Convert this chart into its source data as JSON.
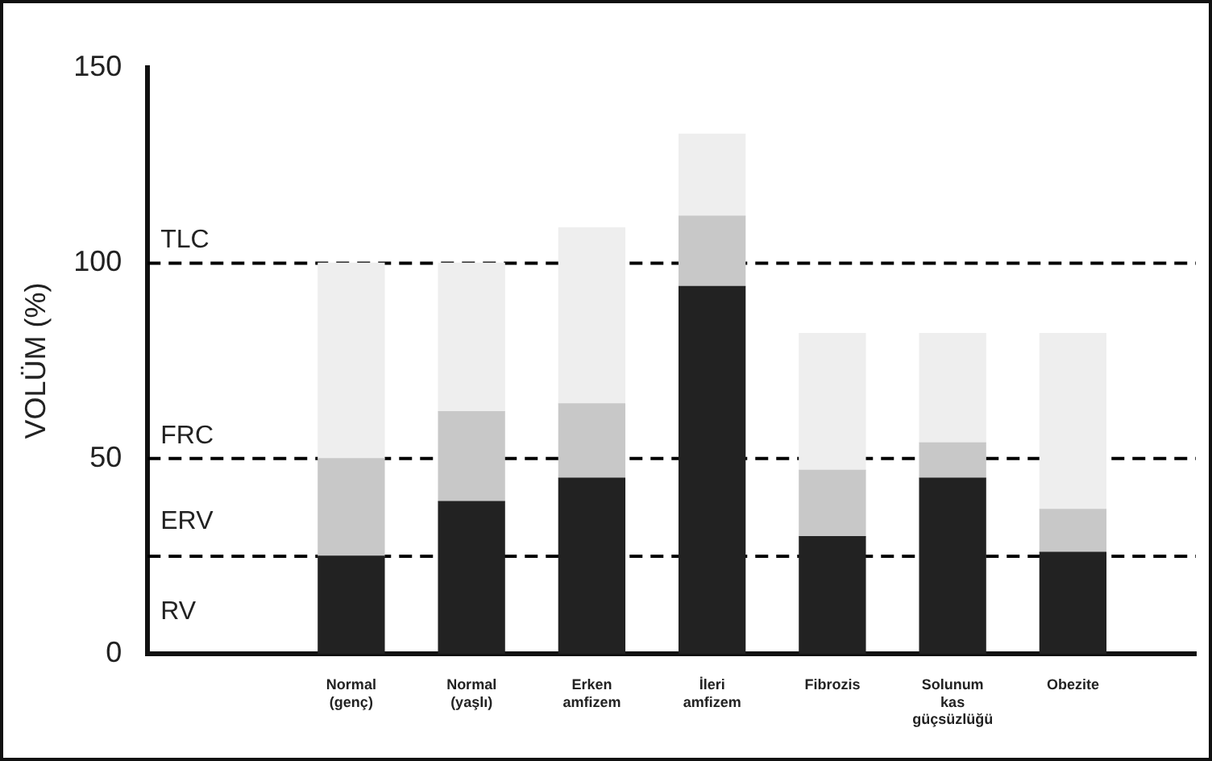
{
  "chart_data": {
    "type": "bar",
    "stacked": true,
    "ylabel": "VOLÜM (%)",
    "categories": [
      "Normal (genç)",
      "Normal (yaşlı)",
      "Erken amfizem",
      "İleri amfizem",
      "Fibrozis",
      "Solunum kas güçsüzlüğü",
      "Obezite"
    ],
    "series": [
      {
        "color": "#222222",
        "values": [
          25,
          39,
          45,
          94,
          30,
          45,
          26
        ]
      },
      {
        "color": "#c8c8c8",
        "values": [
          25,
          23,
          19,
          18,
          17,
          9,
          11
        ]
      },
      {
        "color": "#eeeeee",
        "values": [
          50,
          38,
          45,
          21,
          35,
          28,
          45
        ]
      }
    ],
    "ylim": [
      0,
      150
    ],
    "yticks": [
      0,
      50,
      100,
      150
    ],
    "ref_lines": [
      {
        "axis": "y",
        "value": 100,
        "label": "TLC",
        "line_style": "dashed",
        "color": "#000000"
      },
      {
        "axis": "y",
        "value": 50,
        "label": "FRC",
        "line_style": "dashed",
        "color": "#000000"
      },
      {
        "axis": "y",
        "value": 25,
        "line_style": "dashed",
        "color": "#000000"
      }
    ],
    "annotations": [
      "ERV",
      "RV"
    ]
  }
}
